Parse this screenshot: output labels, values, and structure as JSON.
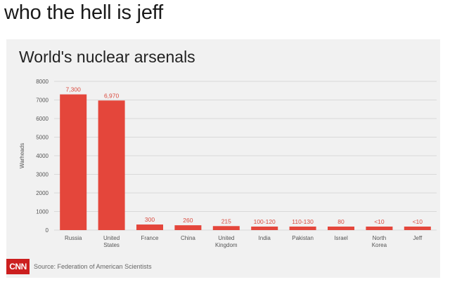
{
  "meme": {
    "caption": "who the hell is jeff"
  },
  "card": {
    "source_logo": "CNN",
    "source": "Source: Federation of American Scientists"
  },
  "colors": {
    "bar": "#e4463b",
    "grid": "#d9d9d9",
    "label": "#d94a3e"
  },
  "chart_data": {
    "type": "bar",
    "title": "World's nuclear arsenals",
    "xlabel": "",
    "ylabel": "Warheads",
    "ylim": [
      0,
      8000
    ],
    "yticks": [
      0,
      1000,
      2000,
      3000,
      4000,
      5000,
      6000,
      7000,
      8000
    ],
    "grid": true,
    "categories": [
      [
        "Russia"
      ],
      [
        "United",
        "States"
      ],
      [
        "France"
      ],
      [
        "China"
      ],
      [
        "United",
        "Kingdom"
      ],
      [
        "India"
      ],
      [
        "Pakistan"
      ],
      [
        "Israel"
      ],
      [
        "North",
        "Korea"
      ],
      [
        "Jeff"
      ]
    ],
    "values": [
      7300,
      6970,
      300,
      260,
      215,
      110,
      120,
      80,
      10,
      10
    ],
    "data_labels": [
      "7,300",
      "6,970",
      "300",
      "260",
      "215",
      "100-120",
      "110-130",
      "80",
      "<10",
      "<10"
    ]
  }
}
